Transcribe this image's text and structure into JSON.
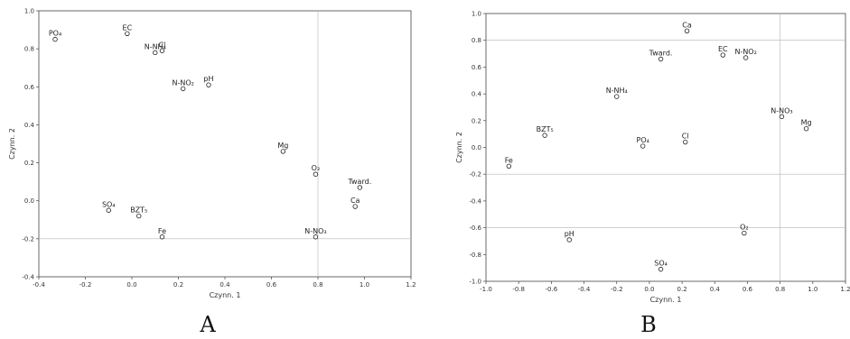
{
  "chart_data": [
    {
      "type": "scatter",
      "panel_label": "A",
      "xlabel": "Czynn. 1",
      "ylabel": "Czynn. 2",
      "xlim": [
        -0.4,
        1.2
      ],
      "ylim": [
        -0.4,
        1.0
      ],
      "xticks": [
        "-0.4",
        "-0.2",
        "0.0",
        "0.2",
        "0.4",
        "0.6",
        "0.8",
        "1.0",
        "1.2"
      ],
      "yticks": [
        "-0.4",
        "-0.2",
        "0.0",
        "0.2",
        "0.4",
        "0.6",
        "0.8",
        "1.0"
      ],
      "ref_lines": {
        "x": 0.8,
        "y": -0.2
      },
      "points": [
        {
          "label": "PO₄",
          "x": -0.33,
          "y": 0.85
        },
        {
          "label": "EC",
          "x": -0.02,
          "y": 0.88
        },
        {
          "label": "N-NH₄",
          "x": 0.1,
          "y": 0.78
        },
        {
          "label": "Cl",
          "x": 0.13,
          "y": 0.79
        },
        {
          "label": "N-NO₂",
          "x": 0.22,
          "y": 0.59
        },
        {
          "label": "pH",
          "x": 0.33,
          "y": 0.61
        },
        {
          "label": "Mg",
          "x": 0.65,
          "y": 0.26
        },
        {
          "label": "O₂",
          "x": 0.79,
          "y": 0.14
        },
        {
          "label": "Tward.",
          "x": 0.98,
          "y": 0.07
        },
        {
          "label": "Ca",
          "x": 0.96,
          "y": -0.03
        },
        {
          "label": "SO₄",
          "x": -0.1,
          "y": -0.05
        },
        {
          "label": "BZT₅",
          "x": 0.03,
          "y": -0.08
        },
        {
          "label": "Fe",
          "x": 0.13,
          "y": -0.19
        },
        {
          "label": "N-NO₃",
          "x": 0.79,
          "y": -0.19
        }
      ]
    },
    {
      "type": "scatter",
      "panel_label": "B",
      "xlabel": "Czynn. 1",
      "ylabel": "Czynn. 2",
      "xlim": [
        -1.0,
        1.2
      ],
      "ylim": [
        -1.0,
        1.0
      ],
      "xticks": [
        "-1.0",
        "-0.8",
        "-0.6",
        "-0.4",
        "-0.2",
        "0.0",
        "0.2",
        "0.4",
        "0.6",
        "0.8",
        "1.0",
        "1.2"
      ],
      "yticks": [
        "-1.0",
        "-0.8",
        "-0.6",
        "-0.4",
        "-0.2",
        "0.0",
        "0.2",
        "0.4",
        "0.6",
        "0.8",
        "1.0"
      ],
      "ref_lines": {
        "x": 0.8,
        "y": [
          -0.2,
          -0.6,
          0.8
        ]
      },
      "points": [
        {
          "label": "Ca",
          "x": 0.23,
          "y": 0.87
        },
        {
          "label": "EC",
          "x": 0.45,
          "y": 0.69
        },
        {
          "label": "N-NO₂",
          "x": 0.59,
          "y": 0.67
        },
        {
          "label": "Tward.",
          "x": 0.07,
          "y": 0.66
        },
        {
          "label": "N-NH₄",
          "x": -0.2,
          "y": 0.38
        },
        {
          "label": "N-NO₃",
          "x": 0.81,
          "y": 0.23
        },
        {
          "label": "Mg",
          "x": 0.96,
          "y": 0.14
        },
        {
          "label": "BZT₅",
          "x": -0.64,
          "y": 0.09
        },
        {
          "label": "PO₄",
          "x": -0.04,
          "y": 0.01
        },
        {
          "label": "Cl",
          "x": 0.22,
          "y": 0.04
        },
        {
          "label": "Fe",
          "x": -0.86,
          "y": -0.14
        },
        {
          "label": "O₂",
          "x": 0.58,
          "y": -0.64
        },
        {
          "label": "pH",
          "x": -0.49,
          "y": -0.69
        },
        {
          "label": "SO₄",
          "x": 0.07,
          "y": -0.91
        }
      ]
    }
  ]
}
